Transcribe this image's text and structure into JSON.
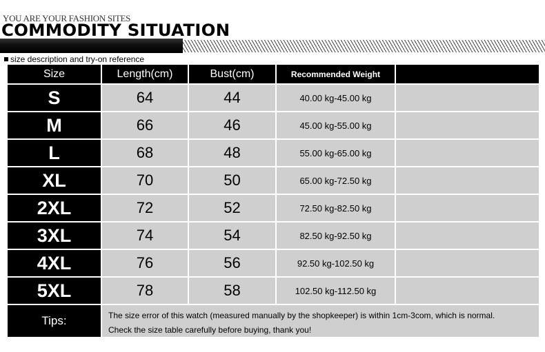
{
  "header": {
    "tagline": "YOU ARE YOUR FASHION SITES",
    "title": "COMMODITY SITUATION",
    "subtitle": "size description and try-on reference"
  },
  "table": {
    "columns": [
      "Size",
      "Length(cm)",
      "Bust(cm)",
      "Recommended Weight",
      ""
    ],
    "rows": [
      {
        "size": "S",
        "length": "64",
        "bust": "44",
        "weight": "40.00 kg-45.00 kg"
      },
      {
        "size": "M",
        "length": "66",
        "bust": "46",
        "weight": "45.00 kg-55.00 kg"
      },
      {
        "size": "L",
        "length": "68",
        "bust": "48",
        "weight": "55.00 kg-65.00 kg"
      },
      {
        "size": "XL",
        "length": "70",
        "bust": "50",
        "weight": "65.00 kg-72.50 kg"
      },
      {
        "size": "2XL",
        "length": "72",
        "bust": "52",
        "weight": "72.50 kg-82.50 kg"
      },
      {
        "size": "3XL",
        "length": "74",
        "bust": "54",
        "weight": "82.50 kg-92.50 kg"
      },
      {
        "size": "4XL",
        "length": "76",
        "bust": "56",
        "weight": "92.50 kg-102.50 kg"
      },
      {
        "size": "5XL",
        "length": "78",
        "bust": "58",
        "weight": "102.50 kg-112.50 kg"
      }
    ],
    "tips_label": "Tips:",
    "tips_lines": [
      "The size error of this watch (measured manually by the shopkeeper) is within 1cm-3com, which is normal.",
      "Check the size table carefully before buying, thank you!"
    ]
  }
}
